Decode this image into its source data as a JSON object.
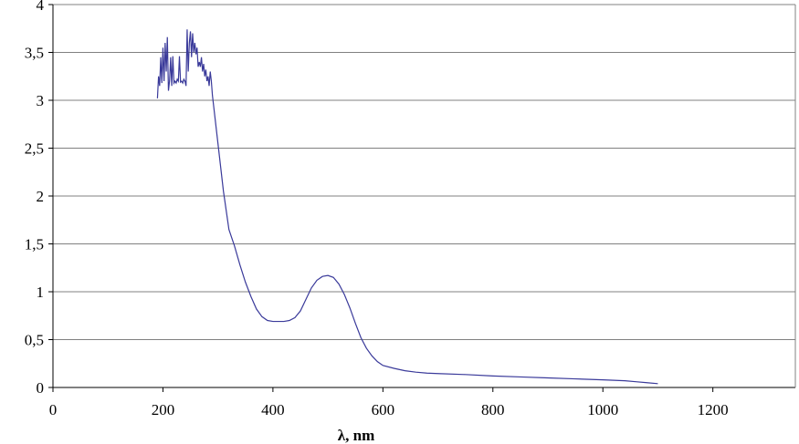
{
  "chart_data": {
    "type": "line",
    "title": "",
    "xlabel": "λ, nm",
    "ylabel": "",
    "xlim": [
      0,
      1350
    ],
    "ylim": [
      0,
      4
    ],
    "grid": true,
    "line_color": "#3a3a9a",
    "grid_color": "#808080",
    "x_ticks": [
      {
        "value": 0,
        "label": "0"
      },
      {
        "value": 200,
        "label": "200"
      },
      {
        "value": 400,
        "label": "400"
      },
      {
        "value": 600,
        "label": "600"
      },
      {
        "value": 800,
        "label": "800"
      },
      {
        "value": 1000,
        "label": "1000"
      },
      {
        "value": 1200,
        "label": "1200"
      }
    ],
    "y_ticks": [
      {
        "value": 0,
        "label": "0"
      },
      {
        "value": 0.5,
        "label": "0,5"
      },
      {
        "value": 1,
        "label": "1"
      },
      {
        "value": 1.5,
        "label": "1,5"
      },
      {
        "value": 2,
        "label": "2"
      },
      {
        "value": 2.5,
        "label": "2,5"
      },
      {
        "value": 3,
        "label": "3"
      },
      {
        "value": 3.5,
        "label": "3,5"
      },
      {
        "value": 4,
        "label": "4"
      }
    ],
    "series": [
      {
        "x": [
          190,
          192,
          194,
          196,
          198,
          200,
          202,
          204,
          206,
          208,
          210,
          212,
          214,
          216,
          218,
          220,
          222,
          224,
          226,
          228,
          230,
          232,
          234,
          236,
          238,
          240,
          242,
          244,
          246,
          248,
          250,
          252,
          254,
          256,
          258,
          260,
          262,
          264,
          266,
          268,
          270,
          272,
          274,
          276,
          278,
          280,
          282,
          284,
          286,
          288,
          290,
          295,
          300,
          305,
          310,
          315,
          320,
          330,
          340,
          350,
          360,
          370,
          380,
          390,
          400,
          410,
          420,
          430,
          440,
          450,
          460,
          470,
          480,
          490,
          500,
          510,
          520,
          530,
          540,
          550,
          560,
          570,
          580,
          590,
          600,
          620,
          640,
          660,
          680,
          700,
          750,
          800,
          850,
          900,
          950,
          1000,
          1020,
          1040,
          1060,
          1080,
          1100
        ],
        "y": [
          3.02,
          3.25,
          3.15,
          3.45,
          3.18,
          3.55,
          3.2,
          3.6,
          3.3,
          3.66,
          3.1,
          3.2,
          3.45,
          3.15,
          3.46,
          3.18,
          3.2,
          3.18,
          3.22,
          3.2,
          3.46,
          3.19,
          3.2,
          3.18,
          3.22,
          3.2,
          3.15,
          3.74,
          3.3,
          3.6,
          3.72,
          3.45,
          3.7,
          3.5,
          3.6,
          3.48,
          3.55,
          3.35,
          3.4,
          3.35,
          3.45,
          3.3,
          3.38,
          3.25,
          3.32,
          3.2,
          3.25,
          3.15,
          3.3,
          3.2,
          3.05,
          2.8,
          2.55,
          2.3,
          2.05,
          1.85,
          1.65,
          1.48,
          1.28,
          1.1,
          0.95,
          0.82,
          0.74,
          0.7,
          0.69,
          0.69,
          0.69,
          0.7,
          0.73,
          0.8,
          0.92,
          1.04,
          1.12,
          1.16,
          1.17,
          1.15,
          1.08,
          0.97,
          0.83,
          0.67,
          0.52,
          0.41,
          0.33,
          0.27,
          0.23,
          0.2,
          0.175,
          0.16,
          0.15,
          0.145,
          0.135,
          0.12,
          0.11,
          0.1,
          0.09,
          0.08,
          0.075,
          0.07,
          0.06,
          0.05,
          0.04
        ]
      }
    ]
  }
}
